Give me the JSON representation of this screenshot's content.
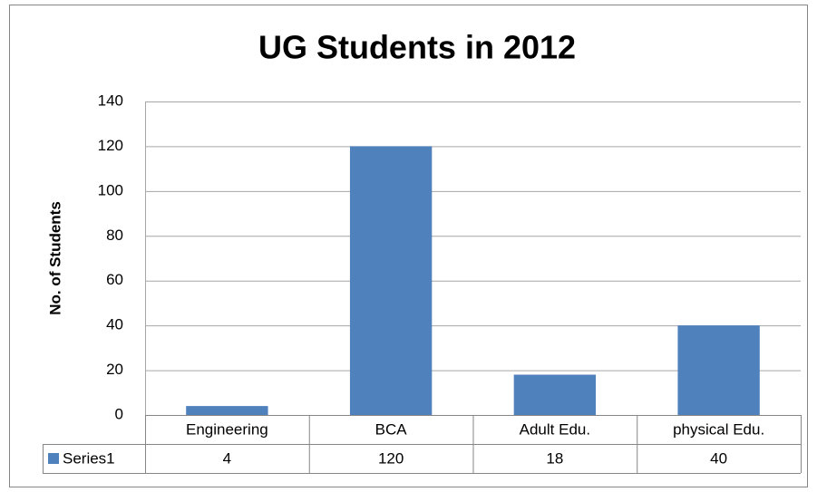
{
  "chart_data": {
    "type": "bar",
    "title": "UG Students in 2012",
    "y_label": "No. of Students",
    "categories": [
      "Engineering",
      "BCA",
      "Adult Edu.",
      "physical Edu."
    ],
    "series": [
      {
        "name": "Series1",
        "color": "#4f81bd",
        "values": [
          4,
          120,
          18,
          40
        ]
      }
    ],
    "ylim": [
      0,
      140
    ],
    "yticks": [
      0,
      20,
      40,
      60,
      80,
      100,
      120,
      140
    ],
    "grid": true,
    "data_table": true
  }
}
